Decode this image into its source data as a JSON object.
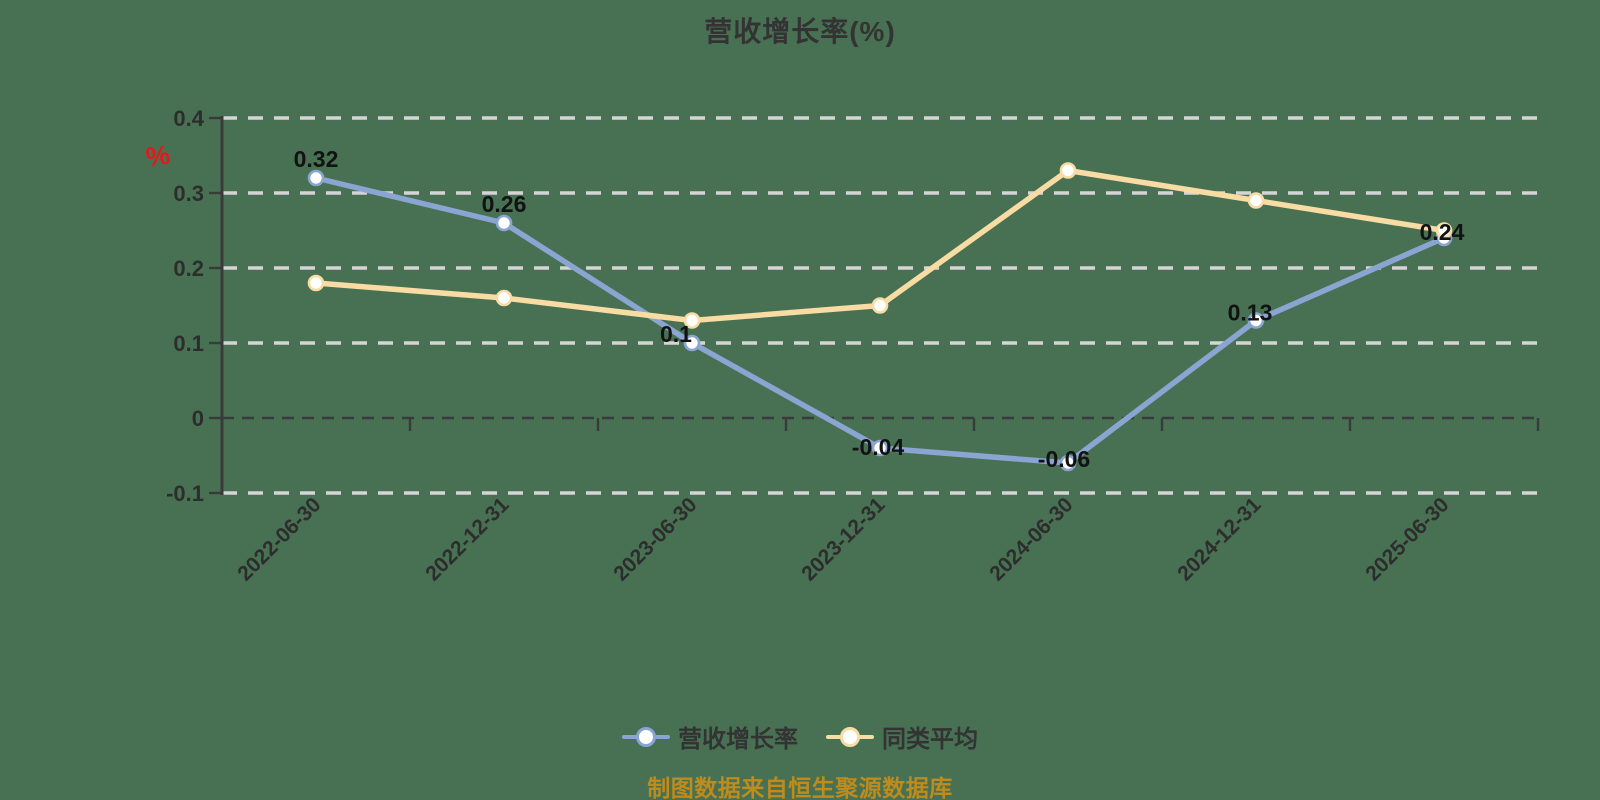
{
  "title": "营收增长率(%)",
  "watermark_percent": "%",
  "source_note": "制图数据来自恒生聚源数据库",
  "colors": {
    "background": "#487154",
    "series_main": "#8AA5D1",
    "series_avg": "#F8DCA3",
    "grid_light": "#D5D5D5",
    "axis_dark": "#3A3A3A",
    "tick_text": "#2D2D2D",
    "value_label": "#121212",
    "title_text": "#333333",
    "note_text": "#BE8B1D",
    "red_mark": "#E11B1B",
    "marker_fill": "#FFFFFF"
  },
  "legend": [
    {
      "label": "营收增长率",
      "color": "#8AA5D1"
    },
    {
      "label": "同类平均",
      "color": "#F8DCA3"
    }
  ],
  "chart_data": {
    "type": "line",
    "title": "营收增长率(%)",
    "categories": [
      "2022-06-30",
      "2022-12-31",
      "2023-06-30",
      "2023-12-31",
      "2024-06-30",
      "2024-12-31",
      "2025-06-30"
    ],
    "series": [
      {
        "name": "营收增长率",
        "color": "#8AA5D1",
        "values": [
          0.32,
          0.26,
          0.1,
          -0.04,
          -0.06,
          0.13,
          0.24
        ],
        "labels": [
          "0.32",
          "0.26",
          "0.1",
          "-0.04",
          "-0.06",
          "0.13",
          "0.24"
        ]
      },
      {
        "name": "同类平均",
        "color": "#F8DCA3",
        "values": [
          0.18,
          0.16,
          0.13,
          0.15,
          0.33,
          0.29,
          0.25
        ],
        "labels": []
      }
    ],
    "y_ticks": [
      0.4,
      0.3,
      0.2,
      0.1,
      0,
      -0.1
    ],
    "y_tick_labels": [
      "0.4",
      "0.3",
      "0.2",
      "0.1",
      "0",
      "-0.1"
    ],
    "ylim": [
      -0.1,
      0.4
    ],
    "xlabel": "",
    "ylabel": "",
    "grid": "dashed horizontal",
    "zero_line": "dark dashed",
    "legend_position": "bottom",
    "x_label_rotation_deg": 45
  }
}
